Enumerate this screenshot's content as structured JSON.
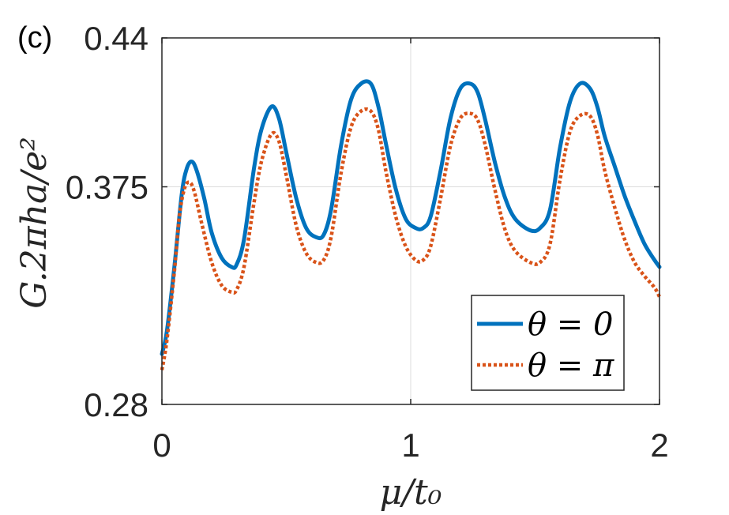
{
  "panel_label": "(c)",
  "chart_data": {
    "type": "line",
    "xlabel": "μ/t₀",
    "ylabel": "G.2πha/e²",
    "xlim": [
      0,
      2
    ],
    "ylim": [
      0.28,
      0.44
    ],
    "xticks": [
      0,
      1,
      2
    ],
    "xtick_labels": [
      "0",
      "1",
      "2"
    ],
    "yticks": [
      0.28,
      0.375,
      0.44
    ],
    "ytick_labels": [
      "0.28",
      "0.375",
      "0.44"
    ],
    "grid": true,
    "legend_position": "bottom-right",
    "series": [
      {
        "name": "θ = 0",
        "color": "#0072BD",
        "style": "solid",
        "x": [
          0,
          0.02,
          0.05,
          0.08,
          0.1,
          0.12,
          0.14,
          0.17,
          0.2,
          0.24,
          0.28,
          0.3,
          0.33,
          0.37,
          0.4,
          0.44,
          0.47,
          0.5,
          0.54,
          0.58,
          0.62,
          0.65,
          0.68,
          0.72,
          0.76,
          0.8,
          0.84,
          0.87,
          0.9,
          0.94,
          0.98,
          1.02,
          1.05,
          1.08,
          1.12,
          1.16,
          1.2,
          1.24,
          1.27,
          1.3,
          1.34,
          1.38,
          1.42,
          1.48,
          1.52,
          1.56,
          1.6,
          1.64,
          1.68,
          1.72,
          1.75,
          1.78,
          1.82,
          1.86,
          1.9,
          1.94,
          1.98,
          2.0
        ],
        "y": [
          0.302,
          0.312,
          0.34,
          0.372,
          0.383,
          0.386,
          0.382,
          0.37,
          0.355,
          0.344,
          0.34,
          0.341,
          0.352,
          0.383,
          0.4,
          0.41,
          0.405,
          0.39,
          0.37,
          0.357,
          0.353,
          0.354,
          0.365,
          0.393,
          0.413,
          0.42,
          0.42,
          0.41,
          0.394,
          0.374,
          0.361,
          0.357,
          0.357,
          0.362,
          0.382,
          0.405,
          0.418,
          0.42,
          0.416,
          0.404,
          0.385,
          0.37,
          0.361,
          0.356,
          0.357,
          0.365,
          0.392,
          0.412,
          0.42,
          0.418,
          0.41,
          0.397,
          0.384,
          0.371,
          0.36,
          0.35,
          0.343,
          0.34
        ]
      },
      {
        "name": "θ = π",
        "color": "#D95319",
        "style": "dotted",
        "x": [
          0,
          0.02,
          0.05,
          0.07,
          0.09,
          0.11,
          0.13,
          0.16,
          0.2,
          0.24,
          0.28,
          0.3,
          0.33,
          0.37,
          0.4,
          0.44,
          0.47,
          0.5,
          0.54,
          0.58,
          0.62,
          0.65,
          0.68,
          0.72,
          0.76,
          0.8,
          0.84,
          0.87,
          0.9,
          0.94,
          0.98,
          1.02,
          1.05,
          1.08,
          1.12,
          1.16,
          1.2,
          1.24,
          1.27,
          1.3,
          1.34,
          1.38,
          1.42,
          1.48,
          1.52,
          1.56,
          1.6,
          1.64,
          1.68,
          1.72,
          1.75,
          1.78,
          1.82,
          1.86,
          1.9,
          1.94,
          1.98,
          2.0
        ],
        "y": [
          0.295,
          0.308,
          0.338,
          0.362,
          0.374,
          0.377,
          0.373,
          0.359,
          0.342,
          0.332,
          0.329,
          0.33,
          0.34,
          0.368,
          0.386,
          0.398,
          0.395,
          0.38,
          0.358,
          0.346,
          0.342,
          0.343,
          0.353,
          0.381,
          0.401,
          0.408,
          0.408,
          0.4,
          0.382,
          0.362,
          0.349,
          0.343,
          0.343,
          0.349,
          0.37,
          0.393,
          0.405,
          0.407,
          0.404,
          0.393,
          0.373,
          0.356,
          0.347,
          0.342,
          0.342,
          0.35,
          0.378,
          0.399,
          0.406,
          0.406,
          0.398,
          0.382,
          0.366,
          0.352,
          0.342,
          0.336,
          0.331,
          0.327
        ]
      }
    ]
  }
}
